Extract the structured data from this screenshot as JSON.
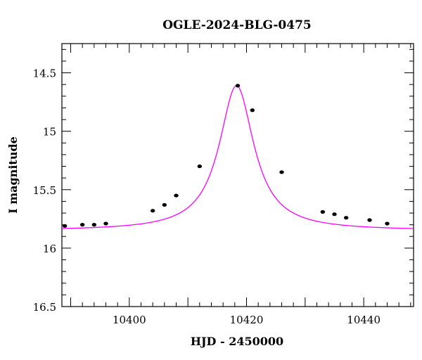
{
  "chart_data": {
    "type": "scatter",
    "title": "OGLE-2024-BLG-0475",
    "xlabel": "HJD - 2450000",
    "ylabel": "I magnitude",
    "xlim": [
      10388.5,
      10448.5
    ],
    "ylim": [
      16.5,
      14.25
    ],
    "y_inverted": true,
    "grid": false,
    "x_ticks": [
      10400,
      10420,
      10440
    ],
    "x_tick_labels": [
      "10400",
      "10420",
      "10440"
    ],
    "y_ticks": [
      14.5,
      15,
      15.5,
      16,
      16.5
    ],
    "y_tick_labels": [
      "14.5",
      "15",
      "15.5",
      "16",
      "16.5"
    ],
    "colors": {
      "model": "#ff00ff",
      "points": "#000000"
    },
    "series": [
      {
        "type": "scatter",
        "x": [
          10389,
          10392,
          10394,
          10396,
          10404,
          10406,
          10408,
          10412,
          10418.5,
          10421,
          10426,
          10433,
          10435,
          10437,
          10441,
          10444
        ],
        "y": [
          15.81,
          15.8,
          15.8,
          15.79,
          15.68,
          15.63,
          15.55,
          15.3,
          14.61,
          14.82,
          15.35,
          15.69,
          15.71,
          15.74,
          15.76,
          15.79
        ]
      },
      {
        "type": "line",
        "model": {
          "t0": 10418.3,
          "baseline": 15.85,
          "peak_amplitude": 1.24,
          "width": 3.6
        }
      }
    ]
  }
}
